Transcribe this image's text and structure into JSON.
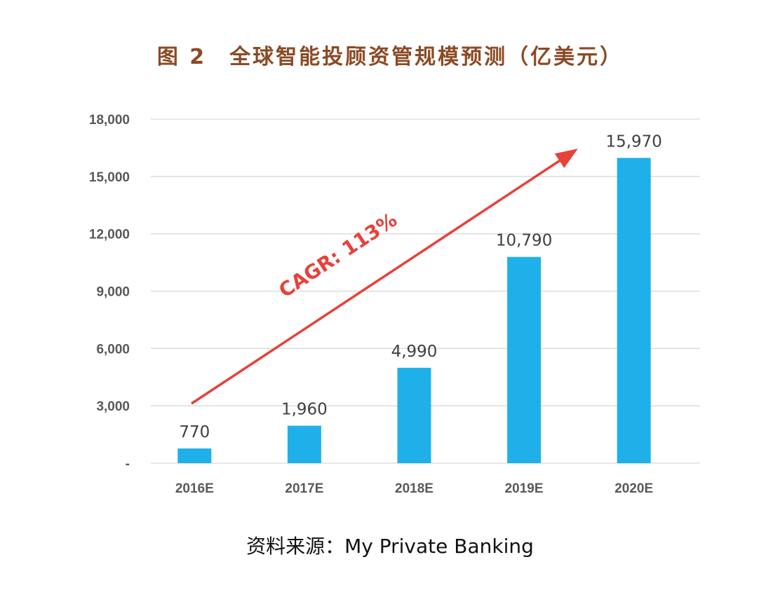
{
  "title": "图 2　全球智能投顾资管规模预测（亿美元）",
  "source": "资料来源：My Private Banking",
  "chart_data": {
    "type": "bar",
    "categories": [
      "2016E",
      "2017E",
      "2018E",
      "2019E",
      "2020E"
    ],
    "values": [
      770,
      1960,
      4990,
      10790,
      15970
    ],
    "data_labels": [
      "770",
      "1,960",
      "4,990",
      "10,790",
      "15,970"
    ],
    "yticks": [
      0,
      3000,
      6000,
      9000,
      12000,
      15000,
      18000
    ],
    "ytick_labels": [
      "-",
      "3,000",
      "6,000",
      "9,000",
      "12,000",
      "15,000",
      "18,000"
    ],
    "ylim": [
      0,
      18000
    ],
    "grid": true,
    "bar_color": "#1fb0ea",
    "annotation": {
      "text": "CAGR: 113%",
      "color": "#e8413a"
    }
  }
}
